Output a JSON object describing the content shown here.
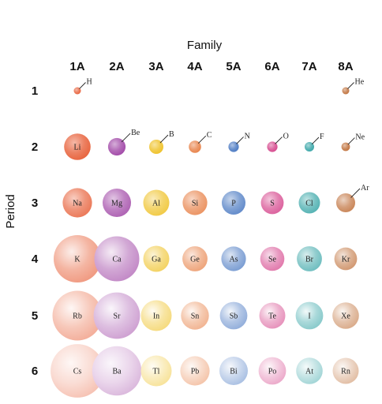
{
  "family_label": "Family",
  "period_label": "Period",
  "families": [
    "1A",
    "2A",
    "3A",
    "4A",
    "5A",
    "6A",
    "7A",
    "8A"
  ],
  "periods": [
    "1",
    "2",
    "3",
    "4",
    "5",
    "6"
  ],
  "colors": {
    "1A": "#e8643e",
    "2A": "#a24aa8",
    "3A": "#efc229",
    "4A": "#e8834a",
    "5A": "#4a79c2",
    "6A": "#d6498e",
    "7A": "#3aa6a8",
    "8A": "#c1733e"
  },
  "elements": [
    {
      "symbol": "H",
      "family": "1A",
      "period": "1",
      "size": 0.1
    },
    {
      "symbol": "He",
      "family": "8A",
      "period": "1",
      "size": 0.09
    },
    {
      "symbol": "Li",
      "family": "1A",
      "period": "2",
      "size": 0.56
    },
    {
      "symbol": "Be",
      "family": "2A",
      "period": "2",
      "size": 0.37
    },
    {
      "symbol": "B",
      "family": "3A",
      "period": "2",
      "size": 0.3
    },
    {
      "symbol": "C",
      "family": "4A",
      "period": "2",
      "size": 0.26
    },
    {
      "symbol": "N",
      "family": "5A",
      "period": "2",
      "size": 0.22
    },
    {
      "symbol": "O",
      "family": "6A",
      "period": "2",
      "size": 0.22
    },
    {
      "symbol": "F",
      "family": "7A",
      "period": "2",
      "size": 0.2
    },
    {
      "symbol": "Ne",
      "family": "8A",
      "period": "2",
      "size": 0.18
    },
    {
      "symbol": "Na",
      "family": "1A",
      "period": "3",
      "size": 0.62
    },
    {
      "symbol": "Mg",
      "family": "2A",
      "period": "3",
      "size": 0.6
    },
    {
      "symbol": "Al",
      "family": "3A",
      "period": "3",
      "size": 0.55
    },
    {
      "symbol": "Si",
      "family": "4A",
      "period": "3",
      "size": 0.52
    },
    {
      "symbol": "P",
      "family": "5A",
      "period": "3",
      "size": 0.5
    },
    {
      "symbol": "S",
      "family": "6A",
      "period": "3",
      "size": 0.48
    },
    {
      "symbol": "Cl",
      "family": "7A",
      "period": "3",
      "size": 0.45
    },
    {
      "symbol": "Ar",
      "family": "8A",
      "period": "3",
      "size": 0.4
    },
    {
      "symbol": "K",
      "family": "1A",
      "period": "4",
      "size": 1.0
    },
    {
      "symbol": "Ca",
      "family": "2A",
      "period": "4",
      "size": 0.95
    },
    {
      "symbol": "Ga",
      "family": "3A",
      "period": "4",
      "size": 0.55
    },
    {
      "symbol": "Ge",
      "family": "4A",
      "period": "4",
      "size": 0.53
    },
    {
      "symbol": "As",
      "family": "5A",
      "period": "4",
      "size": 0.52
    },
    {
      "symbol": "Se",
      "family": "6A",
      "period": "4",
      "size": 0.51
    },
    {
      "symbol": "Br",
      "family": "7A",
      "period": "4",
      "size": 0.53
    },
    {
      "symbol": "Kr",
      "family": "8A",
      "period": "4",
      "size": 0.48
    },
    {
      "symbol": "Rb",
      "family": "1A",
      "period": "5",
      "size": 1.05
    },
    {
      "symbol": "Sr",
      "family": "2A",
      "period": "5",
      "size": 0.98
    },
    {
      "symbol": "In",
      "family": "3A",
      "period": "5",
      "size": 0.65
    },
    {
      "symbol": "Sn",
      "family": "4A",
      "period": "5",
      "size": 0.59
    },
    {
      "symbol": "Sb",
      "family": "5A",
      "period": "5",
      "size": 0.58
    },
    {
      "symbol": "Te",
      "family": "6A",
      "period": "5",
      "size": 0.55
    },
    {
      "symbol": "I",
      "family": "7A",
      "period": "5",
      "size": 0.58
    },
    {
      "symbol": "Xe",
      "family": "8A",
      "period": "5",
      "size": 0.56
    },
    {
      "symbol": "Cs",
      "family": "1A",
      "period": "6",
      "size": 1.13
    },
    {
      "symbol": "Ba",
      "family": "2A",
      "period": "6",
      "size": 1.04
    },
    {
      "symbol": "Tl",
      "family": "3A",
      "period": "6",
      "size": 0.65
    },
    {
      "symbol": "Pb",
      "family": "4A",
      "period": "6",
      "size": 0.62
    },
    {
      "symbol": "Bi",
      "family": "5A",
      "period": "6",
      "size": 0.6
    },
    {
      "symbol": "Po",
      "family": "6A",
      "period": "6",
      "size": 0.58
    },
    {
      "symbol": "At",
      "family": "7A",
      "period": "6",
      "size": 0.56
    },
    {
      "symbol": "Rn",
      "family": "8A",
      "period": "6",
      "size": 0.55
    }
  ]
}
